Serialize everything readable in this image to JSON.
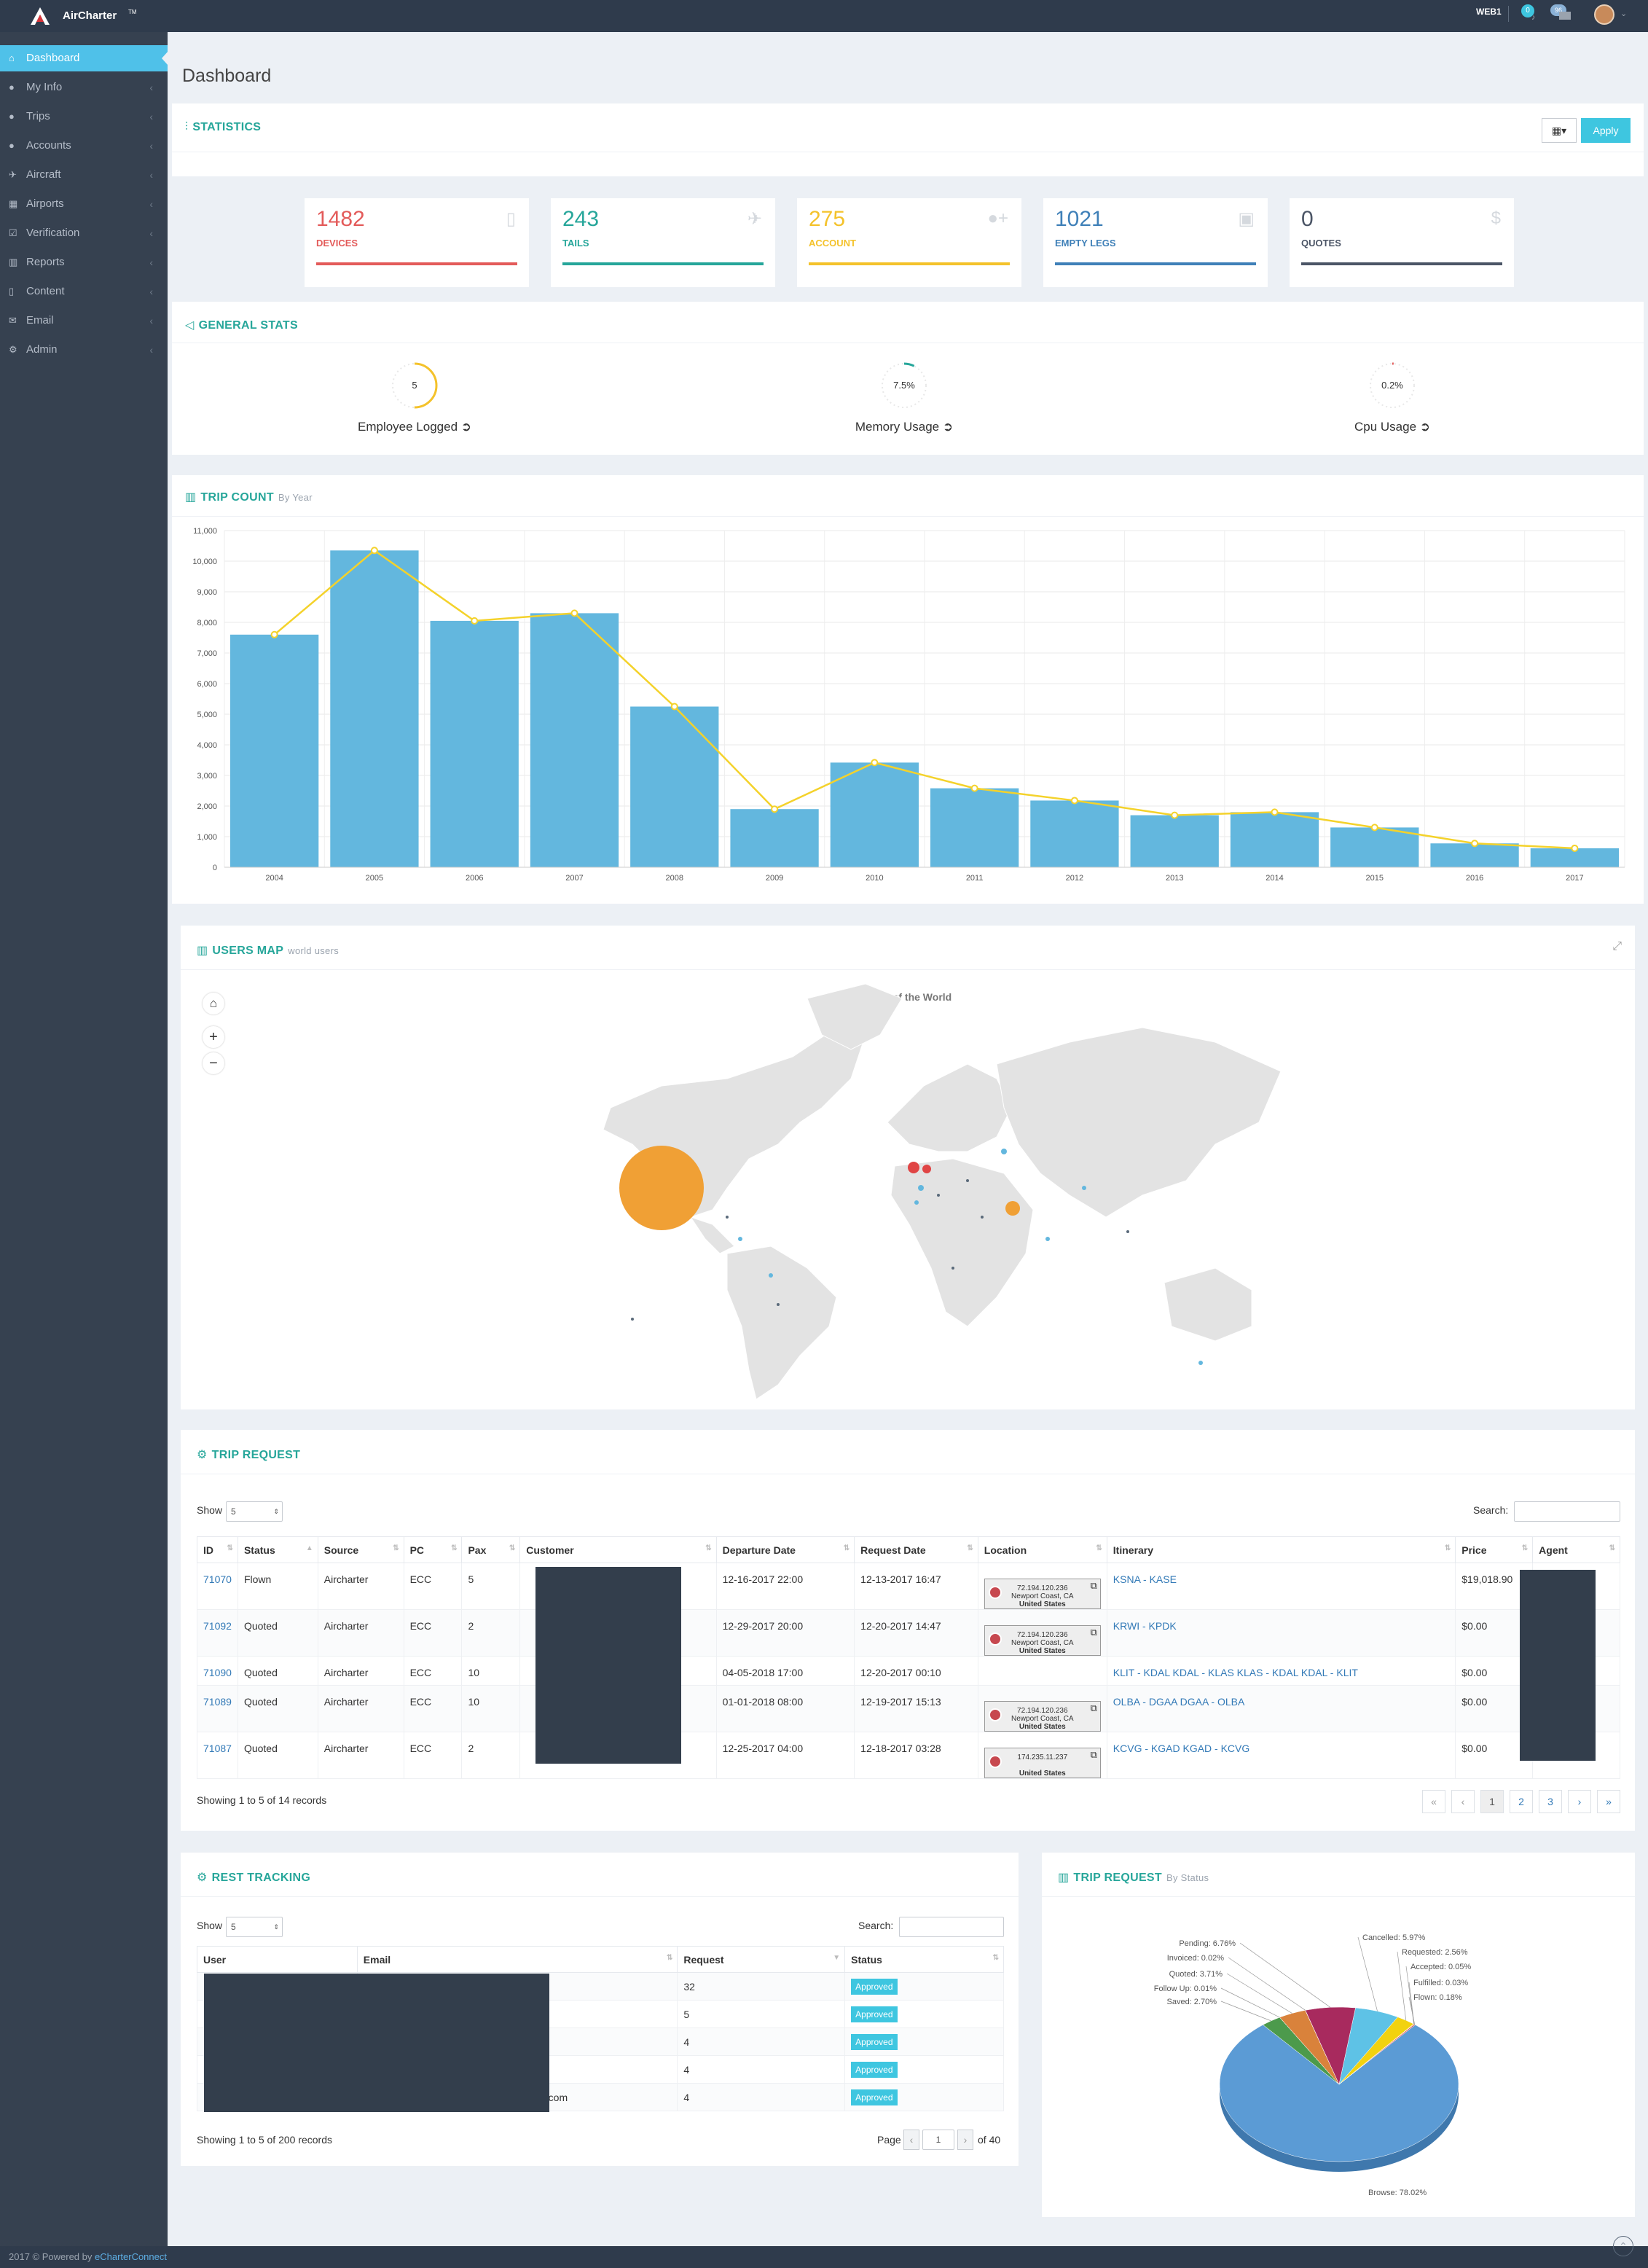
{
  "topbar": {
    "brand": "AirCharter",
    "brand_tm": "TM",
    "username": "WEB1",
    "notif_count": "0",
    "msg_count": "96"
  },
  "sidebar": {
    "items": [
      {
        "label": "Dashboard",
        "icon": "home-icon"
      },
      {
        "label": "My Info",
        "icon": "user-icon"
      },
      {
        "label": "Trips",
        "icon": "users-icon"
      },
      {
        "label": "Accounts",
        "icon": "group-icon"
      },
      {
        "label": "Aircraft",
        "icon": "plane-icon"
      },
      {
        "label": "Airports",
        "icon": "sitemap-icon"
      },
      {
        "label": "Verification",
        "icon": "check-square-icon"
      },
      {
        "label": "Reports",
        "icon": "bar-chart-icon"
      },
      {
        "label": "Content",
        "icon": "file-icon"
      },
      {
        "label": "Email",
        "icon": "envelope-icon"
      },
      {
        "label": "Admin",
        "icon": "cogs-icon"
      }
    ]
  },
  "page": {
    "title": "Dashboard"
  },
  "statistics": {
    "title": "STATISTICS",
    "apply_label": "Apply",
    "calendar_icon": "calendar-icon"
  },
  "cards": [
    {
      "value": "1482",
      "label": "DEVICES",
      "color": "#e35b5a",
      "icon": "tablet-icon"
    },
    {
      "value": "243",
      "label": "TAILS",
      "color": "#26a69a",
      "icon": "plane-icon"
    },
    {
      "value": "275",
      "label": "ACCOUNT",
      "color": "#f4c22b",
      "icon": "user-plus-icon"
    },
    {
      "value": "1021",
      "label": "EMPTY LEGS",
      "color": "#3f80b8",
      "icon": "briefcase-icon"
    },
    {
      "value": "0",
      "label": "QUOTES",
      "color": "#4b5566",
      "icon": "dollar-icon"
    }
  ],
  "general_stats": {
    "title": "GENERAL STATS",
    "items": [
      {
        "value": "5",
        "label": "Employee Logged",
        "fraction": 0.5,
        "color": "#f4c22b"
      },
      {
        "value": "7.5%",
        "label": "Memory Usage",
        "fraction": 0.075,
        "color": "#26a69a"
      },
      {
        "value": "0.2%",
        "label": "Cpu Usage",
        "fraction": 0.002,
        "color": "#e35b5a"
      }
    ]
  },
  "trip_count": {
    "title": "TRIP COUNT",
    "subtitle": "By Year"
  },
  "chart_data": {
    "type": "bar",
    "categories": [
      "2004",
      "2005",
      "2006",
      "2007",
      "2008",
      "2009",
      "2010",
      "2011",
      "2012",
      "2013",
      "2014",
      "2015",
      "2016",
      "2017"
    ],
    "series": [
      {
        "type": "bar",
        "values": [
          7600,
          10350,
          8050,
          8300,
          5250,
          1900,
          3420,
          2580,
          2180,
          1700,
          1800,
          1300,
          780,
          620
        ],
        "color": "#63b7de"
      },
      {
        "type": "line",
        "values": [
          7600,
          10350,
          8050,
          8300,
          5250,
          1900,
          3420,
          2580,
          2180,
          1700,
          1800,
          1300,
          780,
          620
        ],
        "color": "#f4d22b"
      }
    ],
    "ylim": [
      0,
      11000
    ],
    "yticks": [
      "0",
      "1,000",
      "2,000",
      "3,000",
      "4,000",
      "5,000",
      "6,000",
      "7,000",
      "8,000",
      "9,000",
      "10,000",
      "11,000"
    ],
    "grid": true
  },
  "users_map": {
    "title": "USERS MAP",
    "subtitle": "world users",
    "map_title": "Users of the World"
  },
  "trip_request": {
    "title": "TRIP REQUEST",
    "show_label": "Show",
    "show_value": "5",
    "search_label": "Search:",
    "columns": [
      "ID",
      "Status",
      "Source",
      "PC",
      "Pax",
      "Customer",
      "Departure Date",
      "Request Date",
      "Location",
      "Itinerary",
      "Price",
      "Agent"
    ],
    "rows": [
      {
        "id": "71070",
        "status": "Flown",
        "source": "Aircharter",
        "pc": "ECC",
        "pax": "5",
        "dep": "12-16-2017 22:00",
        "req": "12-13-2017 16:47",
        "loc": [
          "72.194.120.236",
          "Newport Coast, CA",
          "United States"
        ],
        "itin": "KSNA - KASE",
        "price": "$19,018.90"
      },
      {
        "id": "71092",
        "status": "Quoted",
        "source": "Aircharter",
        "pc": "ECC",
        "pax": "2",
        "dep": "12-29-2017 20:00",
        "req": "12-20-2017 14:47",
        "loc": [
          "72.194.120.236",
          "Newport Coast, CA",
          "United States"
        ],
        "itin": "KRWI - KPDK",
        "price": "$0.00"
      },
      {
        "id": "71090",
        "status": "Quoted",
        "source": "Aircharter",
        "pc": "ECC",
        "pax": "10",
        "dep": "04-05-2018 17:00",
        "req": "12-20-2017 00:10",
        "loc": null,
        "itin": "KLIT - KDAL KDAL - KLAS KLAS - KDAL KDAL - KLIT",
        "price": "$0.00"
      },
      {
        "id": "71089",
        "status": "Quoted",
        "source": "Aircharter",
        "pc": "ECC",
        "pax": "10",
        "dep": "01-01-2018 08:00",
        "req": "12-19-2017 15:13",
        "loc": [
          "72.194.120.236",
          "Newport Coast, CA",
          "United States"
        ],
        "itin": "OLBA - DGAA DGAA - OLBA",
        "price": "$0.00"
      },
      {
        "id": "71087",
        "status": "Quoted",
        "source": "Aircharter",
        "pc": "ECC",
        "pax": "2",
        "dep": "12-25-2017 04:00",
        "req": "12-18-2017 03:28",
        "loc": [
          "174.235.11.237",
          "",
          "United States"
        ],
        "itin": "KCVG - KGAD KGAD - KCVG",
        "price": "$0.00"
      }
    ],
    "summary": "Showing 1 to 5 of 14 records",
    "pager": [
      "«",
      "‹",
      "1",
      "2",
      "3",
      "›",
      "»"
    ]
  },
  "rest_tracking": {
    "title": "REST TRACKING",
    "show_label": "Show",
    "show_value": "5",
    "search_label": "Search:",
    "columns": [
      "User",
      "Email",
      "Request",
      "Status"
    ],
    "rows": [
      {
        "email": "",
        "request": "32",
        "status": "Approved"
      },
      {
        "email": "",
        "request": "5",
        "status": "Approved"
      },
      {
        "email": "",
        "request": "4",
        "status": "Approved"
      },
      {
        "email": "",
        "request": "4",
        "status": "Approved"
      },
      {
        "email": ".com",
        "request": "4",
        "status": "Approved"
      }
    ],
    "summary": "Showing 1 to 5 of 200 records",
    "page_label": "Page",
    "page_value": "1",
    "of_label": "of 40"
  },
  "trip_status": {
    "title": "TRIP REQUEST",
    "subtitle": "By Status",
    "slices": [
      {
        "label": "Browse: 78.02%",
        "value": 78.02,
        "color": "#5b9bd5"
      },
      {
        "label": "Saved: 2.70%",
        "value": 2.7,
        "color": "#4c9a4c"
      },
      {
        "label": "Follow Up: 0.01%",
        "value": 0.01,
        "color": "#8a8a3c"
      },
      {
        "label": "Quoted: 3.71%",
        "value": 3.71,
        "color": "#d9823b"
      },
      {
        "label": "Invoiced: 0.02%",
        "value": 0.02,
        "color": "#a05d9a"
      },
      {
        "label": "Pending: 6.76%",
        "value": 6.76,
        "color": "#a82a5e"
      },
      {
        "label": "Cancelled: 5.97%",
        "value": 5.97,
        "color": "#5ec2e6"
      },
      {
        "label": "Requested: 2.56%",
        "value": 2.56,
        "color": "#f2d20f"
      },
      {
        "label": "Accepted: 0.05%",
        "value": 0.05,
        "color": "#98c23a"
      },
      {
        "label": "Fulfilled: 0.03%",
        "value": 0.03,
        "color": "#777777"
      },
      {
        "label": "Flown: 0.18%",
        "value": 0.18,
        "color": "#e0554f"
      }
    ]
  },
  "footer": {
    "text": "2017 © Powered by ",
    "link": "eCharterConnect"
  }
}
